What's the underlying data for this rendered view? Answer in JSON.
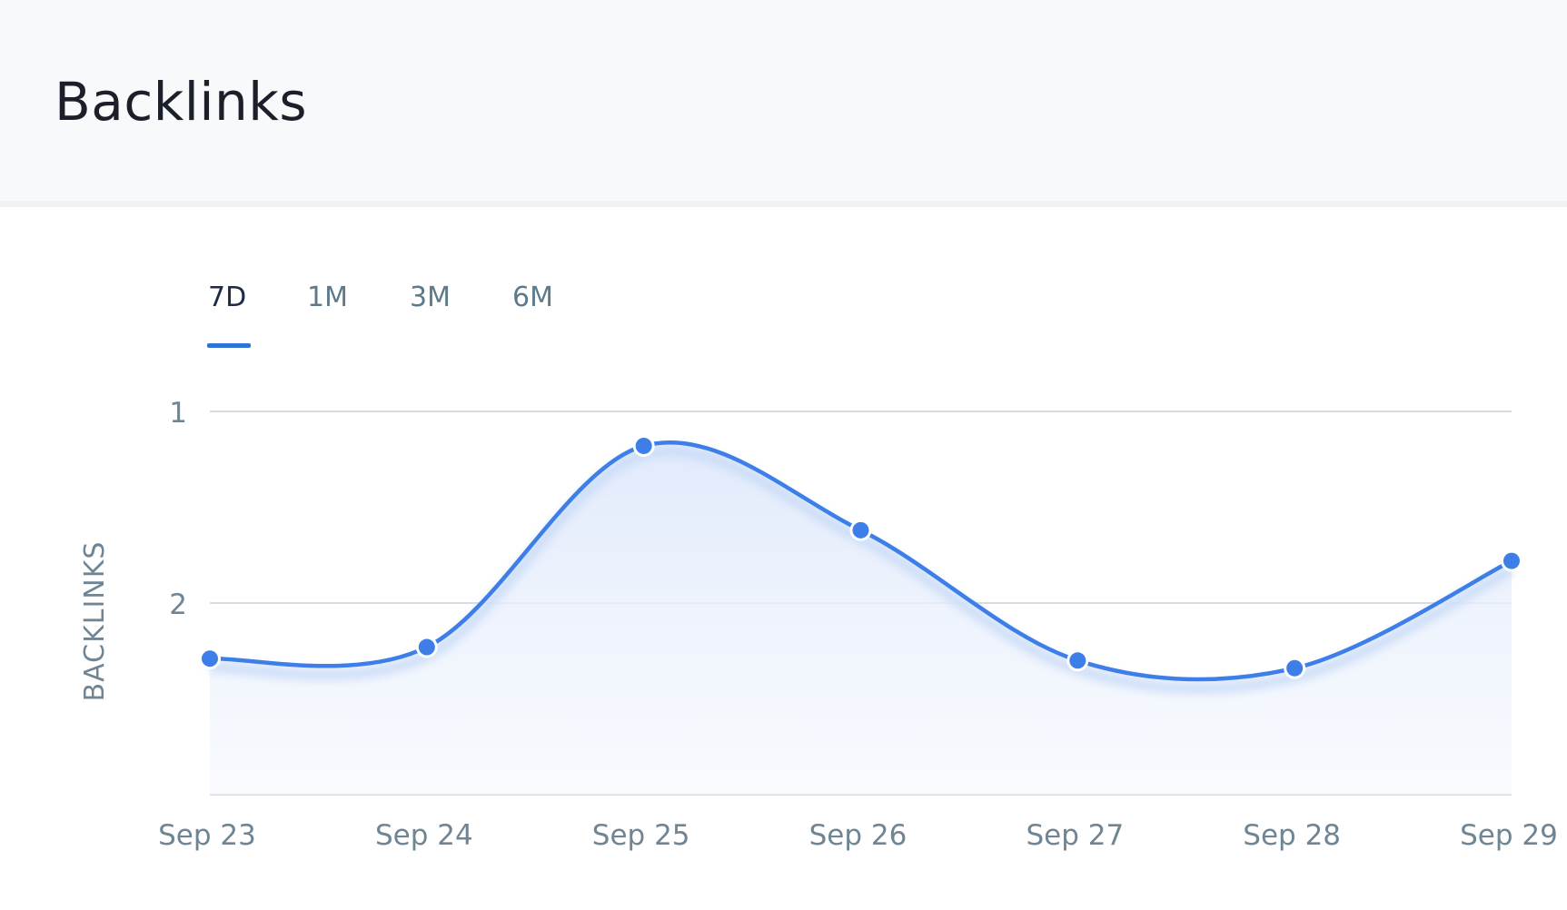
{
  "header": {
    "title": "Backlinks"
  },
  "tabs": [
    {
      "label": "7D",
      "active": true
    },
    {
      "label": "1M",
      "active": false
    },
    {
      "label": "3M",
      "active": false
    },
    {
      "label": "6M",
      "active": false
    }
  ],
  "chart_data": {
    "type": "area",
    "title": "",
    "xlabel": "",
    "ylabel": "BACKLINKS",
    "categories": [
      "Sep 23",
      "Sep 24",
      "Sep 25",
      "Sep 26",
      "Sep 27",
      "Sep 28",
      "Sep 29"
    ],
    "series": [
      {
        "values": [
          2.29,
          2.23,
          1.18,
          1.62,
          2.3,
          2.34,
          1.78
        ]
      }
    ],
    "y_ticks": [
      1,
      2
    ],
    "ylim": [
      1,
      3
    ],
    "y_inverted": true,
    "grid": true,
    "colors": {
      "line": "#3d7ee8",
      "fill": "#e4eefc",
      "grid": "#d7dbe3",
      "axis_text": "#6f8594"
    }
  }
}
